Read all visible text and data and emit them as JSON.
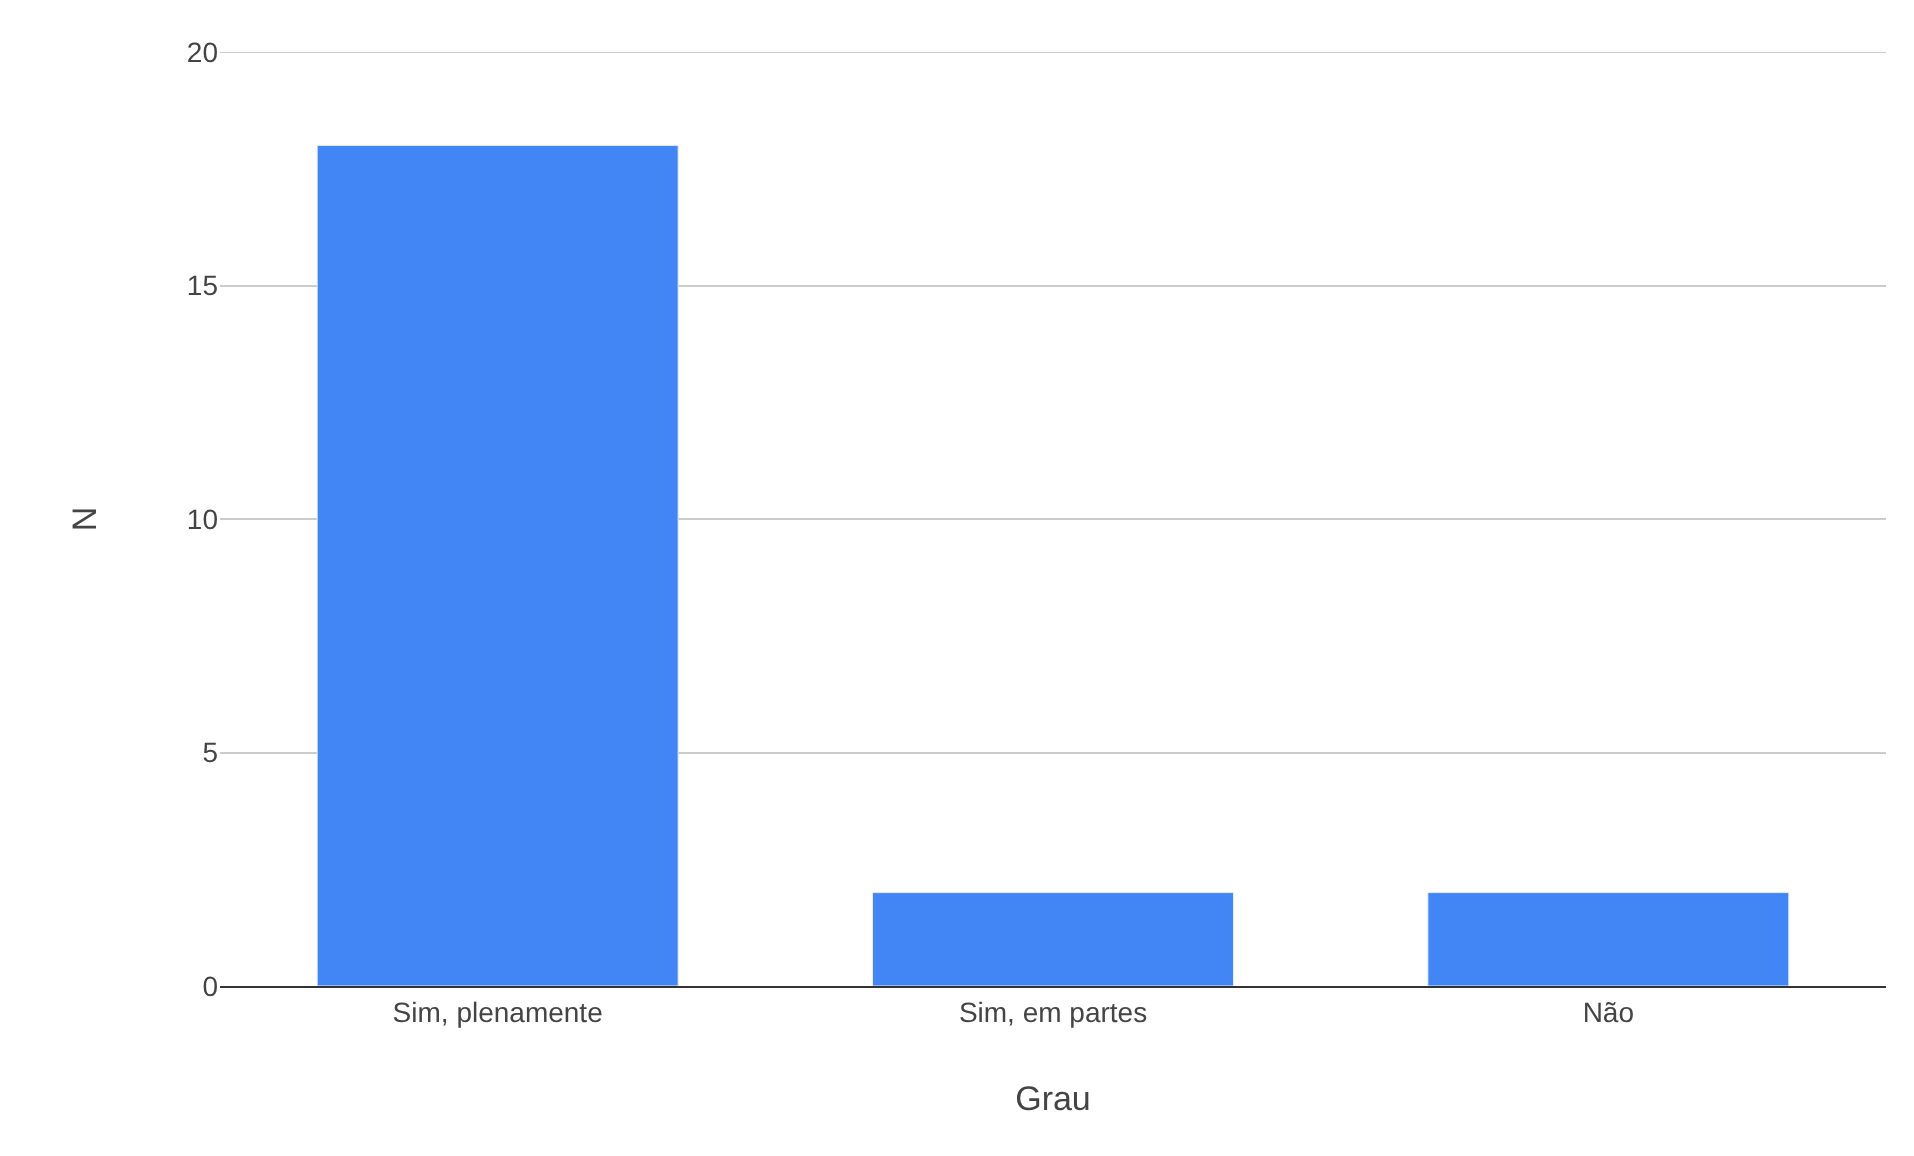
{
  "chart_data": {
    "type": "bar",
    "xlabel": "Grau",
    "ylabel": "N",
    "categories": [
      "Sim, plenamente",
      "Sim, em partes",
      "Não"
    ],
    "series": [
      {
        "color": "#4285f4",
        "values": [
          18,
          2,
          2
        ]
      }
    ],
    "ylim": [
      0,
      20
    ],
    "yticks": [
      0,
      5,
      10,
      15,
      20
    ],
    "grid": "y"
  }
}
